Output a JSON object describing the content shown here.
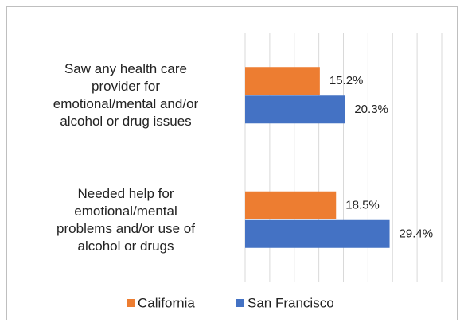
{
  "chart_data": {
    "type": "barh",
    "categories": [
      "Saw any health care\nprovider for\nemotional/mental and/or\nalcohol or drug issues",
      "Needed help for\nemotional/mental\nproblems and/or use of\nalcohol or drugs"
    ],
    "series": [
      {
        "name": "California",
        "color": "#ed7d31",
        "values": [
          15.2,
          18.5
        ],
        "value_labels": [
          "15.2%",
          "18.5%"
        ]
      },
      {
        "name": "San Francisco",
        "color": "#4472c4",
        "values": [
          20.3,
          29.4
        ],
        "value_labels": [
          "20.3%",
          "29.4%"
        ]
      }
    ],
    "xlim": [
      0,
      40
    ],
    "xticks": [
      0,
      5,
      10,
      15,
      20,
      25,
      30,
      35,
      40
    ],
    "grid": true,
    "legend": "bottom"
  }
}
